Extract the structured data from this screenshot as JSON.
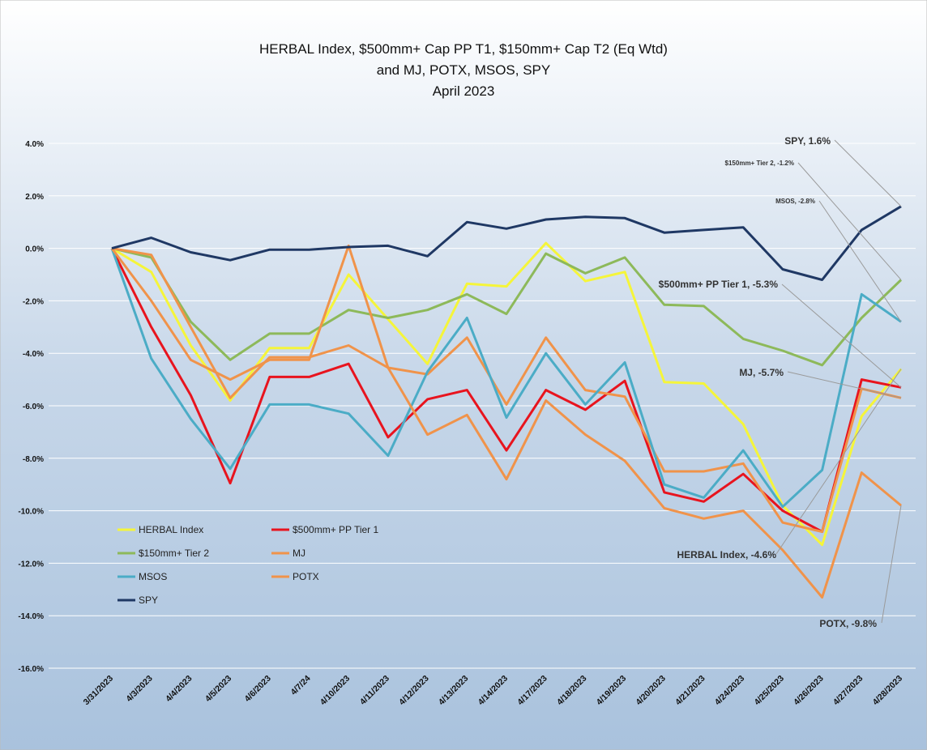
{
  "chart_data": {
    "type": "line",
    "title": [
      "HERBAL Index, $500mm+ Cap PP T1, $150mm+ Cap T2  (Eq Wtd)",
      "and MJ, POTX, MSOS, SPY",
      "April 2023"
    ],
    "categories": [
      "3/31/2023",
      "4/3/2023",
      "4/4/2023",
      "4/5/2023",
      "4/6/2023",
      "4/7/24",
      "4/10/2023",
      "4/11/2023",
      "4/12/2023",
      "4/13/2023",
      "4/14/2023",
      "4/17/2023",
      "4/18/2023",
      "4/19/2023",
      "4/20/2023",
      "4/21/2023",
      "4/24/2023",
      "4/25/2023",
      "4/26/2023",
      "4/27/2023",
      "4/28/2023"
    ],
    "ylim": [
      -16,
      4
    ],
    "yticks": [
      "4.0%",
      "2.0%",
      "0.0%",
      "-2.0%",
      "-4.0%",
      "-6.0%",
      "-8.0%",
      "-10.0%",
      "-12.0%",
      "-14.0%",
      "-16.0%"
    ],
    "grid": true,
    "legend_position": "bottom-left",
    "series": [
      {
        "name": "HERBAL Index",
        "color": "#F5F53A",
        "values": [
          0,
          -0.9,
          -3.7,
          -5.8,
          -3.8,
          -3.8,
          -1.0,
          -2.7,
          -4.4,
          -1.35,
          -1.45,
          0.2,
          -1.25,
          -0.9,
          -5.1,
          -5.15,
          -6.7,
          -9.8,
          -11.3,
          -6.4,
          -4.6
        ]
      },
      {
        "name": "$500mm+ PP Tier 1",
        "color": "#E8141E",
        "values": [
          0,
          -3.0,
          -5.6,
          -8.95,
          -4.9,
          -4.9,
          -4.4,
          -7.2,
          -5.75,
          -5.4,
          -7.7,
          -5.4,
          -6.15,
          -5.05,
          -9.3,
          -9.65,
          -8.6,
          -10.0,
          -10.8,
          -5.0,
          -5.3
        ]
      },
      {
        "name": "$150mm+ Tier 2",
        "color": "#8DB95A",
        "values": [
          0,
          -0.35,
          -2.8,
          -4.25,
          -3.25,
          -3.25,
          -2.35,
          -2.65,
          -2.35,
          -1.75,
          -2.5,
          -0.2,
          -0.95,
          -0.35,
          -2.15,
          -2.2,
          -3.45,
          -3.9,
          -4.45,
          -2.65,
          -1.2
        ]
      },
      {
        "name": "MJ",
        "color": "#F0934A",
        "values": [
          0,
          -0.25,
          -3.0,
          -5.7,
          -4.15,
          -4.15,
          -3.7,
          -4.55,
          -4.8,
          -3.4,
          -5.95,
          -3.4,
          -5.4,
          -5.65,
          -8.5,
          -8.5,
          -8.2,
          -10.45,
          -10.8,
          -5.35,
          -5.7
        ]
      },
      {
        "name": "MSOS",
        "color": "#4BACC6",
        "values": [
          0,
          -4.2,
          -6.5,
          -8.4,
          -5.95,
          -5.95,
          -6.3,
          -7.9,
          -4.7,
          -2.65,
          -6.45,
          -4.0,
          -5.95,
          -4.35,
          -9.0,
          -9.5,
          -7.7,
          -9.85,
          -8.45,
          -1.75,
          -2.8
        ]
      },
      {
        "name": "POTX",
        "color": "#F0934A",
        "values": [
          0,
          -2.0,
          -4.25,
          -5.0,
          -4.25,
          -4.25,
          0.1,
          -4.55,
          -7.1,
          -6.35,
          -8.8,
          -5.8,
          -7.1,
          -8.1,
          -9.9,
          -10.3,
          -10.0,
          -11.5,
          -13.3,
          -8.55,
          -9.8
        ]
      },
      {
        "name": "SPY",
        "color": "#1F3864",
        "values": [
          0,
          0.4,
          -0.15,
          -0.45,
          -0.05,
          -0.05,
          0.05,
          0.1,
          -0.3,
          1.0,
          0.75,
          1.1,
          1.2,
          1.15,
          0.6,
          0.7,
          0.8,
          -0.8,
          -1.2,
          0.7,
          1.6
        ]
      }
    ],
    "annotations": [
      {
        "series": "SPY",
        "text": "SPY, 1.6%"
      },
      {
        "series": "$150mm+ Tier 2",
        "text": "$150mm+ Tier 2, -1.2%"
      },
      {
        "series": "MSOS",
        "text": "MSOS, -2.8%"
      },
      {
        "series": "$500mm+ PP Tier 1",
        "text": "$500mm+ PP Tier 1, -5.3%"
      },
      {
        "series": "MJ",
        "text": "MJ, -5.7%"
      },
      {
        "series": "HERBAL Index",
        "text": "HERBAL Index, -4.6%"
      },
      {
        "series": "POTX",
        "text": "POTX, -9.8%"
      }
    ]
  }
}
